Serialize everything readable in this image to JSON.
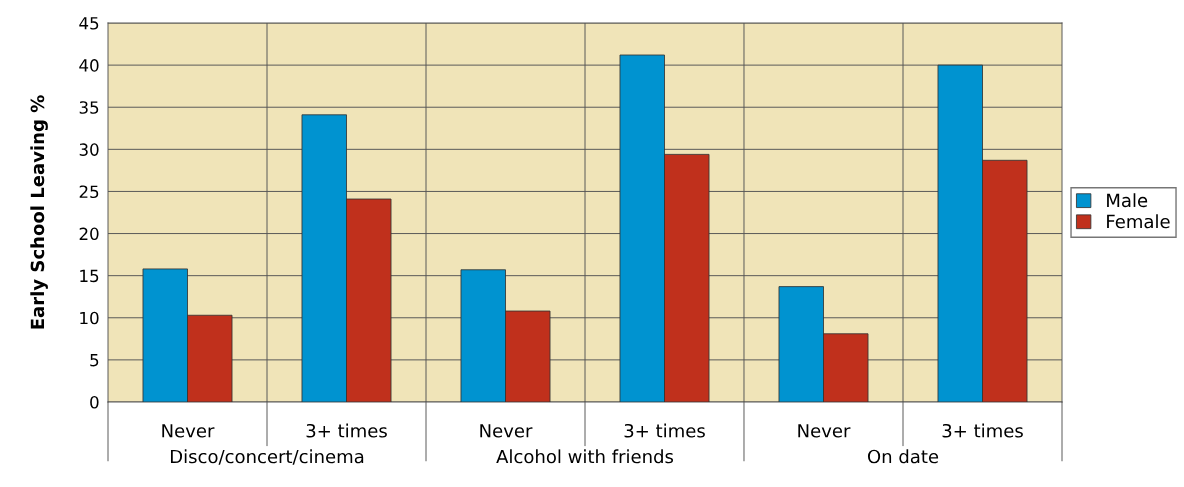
{
  "chart_data": {
    "type": "bar",
    "ylabel": "Early School Leaving %",
    "categories": [
      "Never",
      "3+ times",
      "Never",
      "3+ times",
      "Never",
      "3+ times"
    ],
    "annotations": [
      "Disco/concert/cinema",
      "Alcohol with friends",
      "On date"
    ],
    "series": [
      {
        "name": "Male",
        "color": "#0093d0",
        "values": [
          15.8,
          34.1,
          15.7,
          41.2,
          13.7,
          40.0
        ]
      },
      {
        "name": "Female",
        "color": "#c0301c",
        "values": [
          10.3,
          24.1,
          10.8,
          29.4,
          8.1,
          28.7
        ]
      }
    ],
    "ylim": [
      0,
      45
    ],
    "yticks": [
      0,
      5,
      10,
      15,
      20,
      25,
      30,
      35,
      40,
      45
    ],
    "grid": "y",
    "legend": "right"
  }
}
